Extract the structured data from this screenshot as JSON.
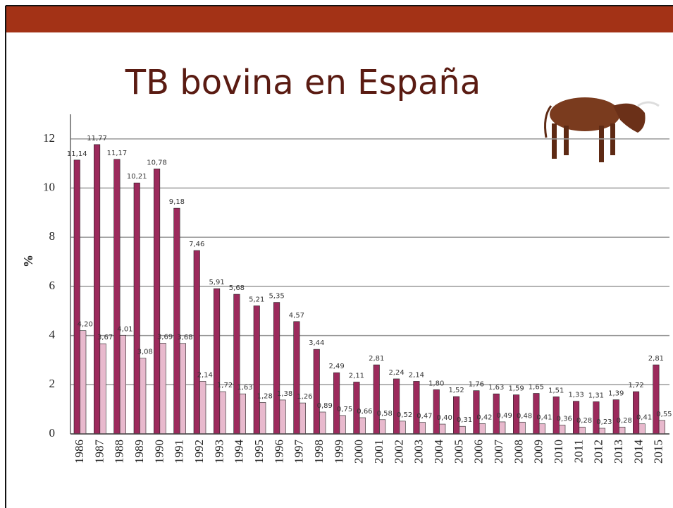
{
  "chart_data": {
    "type": "bar",
    "title": "TB bovina en España",
    "y_label": "%",
    "categories": [
      "1986",
      "1987",
      "1988",
      "1989",
      "1990",
      "1991",
      "1992",
      "1993",
      "1994",
      "1995",
      "1996",
      "1997",
      "1998",
      "1999",
      "2000",
      "2001",
      "2002",
      "2003",
      "2004",
      "2005",
      "2006",
      "2007",
      "2008",
      "2009",
      "2010",
      "2011",
      "2012",
      "2013",
      "2014",
      "2015"
    ],
    "series": [
      {
        "color": "#9c2a5c",
        "values": [
          11.14,
          11.77,
          11.17,
          10.21,
          10.78,
          9.18,
          7.46,
          5.91,
          5.68,
          5.21,
          5.35,
          4.57,
          3.44,
          2.49,
          2.11,
          2.81,
          2.24,
          2.14,
          1.8,
          1.52,
          1.76,
          1.63,
          1.59,
          1.65,
          1.51,
          1.33,
          1.31,
          1.39,
          1.72,
          2.81
        ],
        "value_labels": [
          "11,14",
          "11,77",
          "11,17",
          "10,21",
          "10,78",
          "9,18",
          "7,46",
          "5,91",
          "5,68",
          "5,21",
          "5,35",
          "4,57",
          "3,44",
          "2,49",
          "2,11",
          "2,81",
          "2,24",
          "2,14",
          "1,80",
          "1,52",
          "1,76",
          "1,63",
          "1,59",
          "1,65",
          "1,51",
          "1,33",
          "1,31",
          "1,39",
          "1,72",
          "2,81"
        ]
      },
      {
        "color": "#e8b9cd",
        "values": [
          4.2,
          3.67,
          4.01,
          3.08,
          3.69,
          3.68,
          2.14,
          1.72,
          1.63,
          1.28,
          1.38,
          1.26,
          0.89,
          0.75,
          0.66,
          0.58,
          0.52,
          0.47,
          0.4,
          0.31,
          0.42,
          0.49,
          0.48,
          0.41,
          0.36,
          0.28,
          0.23,
          0.28,
          0.41,
          0.55
        ],
        "value_labels": [
          "4,20",
          "3,67",
          "4,01",
          "3,08",
          "3,69",
          "3,68",
          "2,14",
          "1,72",
          "1,63",
          "1,28",
          "1,38",
          "1,26",
          "0,89",
          "0,75",
          "0,66",
          "0,58",
          "0,52",
          "0,47",
          "0,40",
          "0,31",
          "0,42",
          "0,49",
          "0,48",
          "0,41",
          "0,36",
          "0,28",
          "0,23",
          "0,28",
          "0,41",
          "0,55"
        ]
      }
    ],
    "ylim": [
      0,
      13
    ],
    "yticks": [
      0,
      2,
      4,
      6,
      8,
      10,
      12
    ],
    "grid": true
  }
}
